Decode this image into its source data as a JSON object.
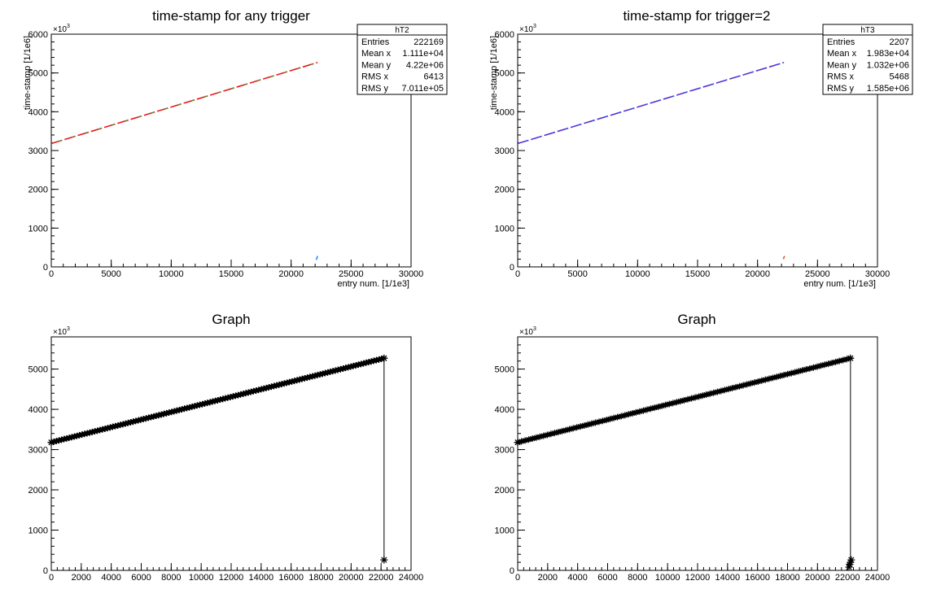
{
  "chart_data": [
    {
      "type": "scatter",
      "title": "time-stamp for any trigger",
      "xlabel": "entry num. [1/1e3]",
      "ylabel": "time-stamp [1/1e6]",
      "exponent_label": "×10",
      "exponent": "3",
      "xlim": [
        0,
        30000
      ],
      "ylim": [
        0,
        6000
      ],
      "x_ticks": [
        0,
        5000,
        10000,
        15000,
        20000,
        25000,
        30000
      ],
      "y_ticks": [
        0,
        1000,
        2000,
        3000,
        4000,
        5000,
        6000
      ],
      "x_minor_step": 1000,
      "y_minor_step": 200,
      "series": [
        {
          "color": "#e41a1c",
          "points": [
            [
              0,
              3180
            ],
            [
              22200,
              5270
            ]
          ]
        },
        {
          "color": "#1e8fff",
          "points": [
            [
              22100,
              180
            ],
            [
              22200,
              280
            ]
          ]
        }
      ],
      "stats": {
        "name": "hT2",
        "rows": [
          {
            "label": "Entries",
            "value": "222169"
          },
          {
            "label": "Mean x",
            "value": "1.111e+04"
          },
          {
            "label": "Mean y",
            "value": "4.22e+06"
          },
          {
            "label": "RMS x",
            "value": "6413"
          },
          {
            "label": "RMS y",
            "value": "7.011e+05"
          }
        ]
      }
    },
    {
      "type": "scatter",
      "title": "time-stamp for trigger=2",
      "xlabel": "entry num. [1/1e3]",
      "ylabel": "time-stamp [1/1e6]",
      "exponent_label": "×10",
      "exponent": "3",
      "xlim": [
        0,
        30000
      ],
      "ylim": [
        0,
        6000
      ],
      "x_ticks": [
        0,
        5000,
        10000,
        15000,
        20000,
        25000,
        30000
      ],
      "y_ticks": [
        0,
        1000,
        2000,
        3000,
        4000,
        5000,
        6000
      ],
      "x_minor_step": 1000,
      "y_minor_step": 200,
      "series": [
        {
          "color": "#5a2fd6",
          "points": [
            [
              0,
              3180
            ],
            [
              22200,
              5270
            ]
          ]
        },
        {
          "color": "#e05a1a",
          "points": [
            [
              22150,
              200
            ],
            [
              22250,
              280
            ]
          ]
        }
      ],
      "stats": {
        "name": "hT3",
        "rows": [
          {
            "label": "Entries",
            "value": "2207"
          },
          {
            "label": "Mean x",
            "value": "1.983e+04"
          },
          {
            "label": "Mean y",
            "value": "1.032e+06"
          },
          {
            "label": "RMS x",
            "value": "5468"
          },
          {
            "label": "RMS y",
            "value": "1.585e+06"
          }
        ]
      }
    },
    {
      "type": "line",
      "title": "Graph",
      "exponent_label": "×10",
      "exponent": "3",
      "xlim": [
        0,
        24000
      ],
      "ylim": [
        0,
        5800
      ],
      "x_ticks": [
        0,
        2000,
        4000,
        6000,
        8000,
        10000,
        12000,
        14000,
        16000,
        18000,
        20000,
        22000,
        24000
      ],
      "y_ticks": [
        0,
        1000,
        2000,
        3000,
        4000,
        5000
      ],
      "x_minor_step": 400,
      "y_minor_step": 200,
      "marker": "star",
      "line": [
        [
          0,
          3180
        ],
        [
          22200,
          5270
        ],
        [
          22200,
          260
        ]
      ],
      "markers": [
        [
          0,
          3180
        ],
        [
          22200,
          5270
        ],
        [
          22200,
          260
        ]
      ],
      "dense_segment": [
        [
          0,
          3180
        ],
        [
          22200,
          5270
        ]
      ],
      "dense_count": 130,
      "color": "#000000"
    },
    {
      "type": "line",
      "title": "Graph",
      "exponent_label": "×10",
      "exponent": "3",
      "xlim": [
        0,
        24000
      ],
      "ylim": [
        0,
        5800
      ],
      "x_ticks": [
        0,
        2000,
        4000,
        6000,
        8000,
        10000,
        12000,
        14000,
        16000,
        18000,
        20000,
        22000,
        24000
      ],
      "y_ticks": [
        0,
        1000,
        2000,
        3000,
        4000,
        5000
      ],
      "x_minor_step": 400,
      "y_minor_step": 200,
      "marker": "star",
      "line": [
        [
          0,
          3180
        ],
        [
          22200,
          5270
        ],
        [
          22200,
          80
        ],
        [
          22200,
          260
        ]
      ],
      "markers": [
        [
          0,
          3180
        ],
        [
          22200,
          5270
        ],
        [
          22100,
          80
        ],
        [
          22150,
          150
        ],
        [
          22200,
          200
        ],
        [
          22250,
          260
        ]
      ],
      "dense_segment": [
        [
          0,
          3180
        ],
        [
          22200,
          5270
        ]
      ],
      "dense_count": 90,
      "color": "#000000"
    }
  ]
}
